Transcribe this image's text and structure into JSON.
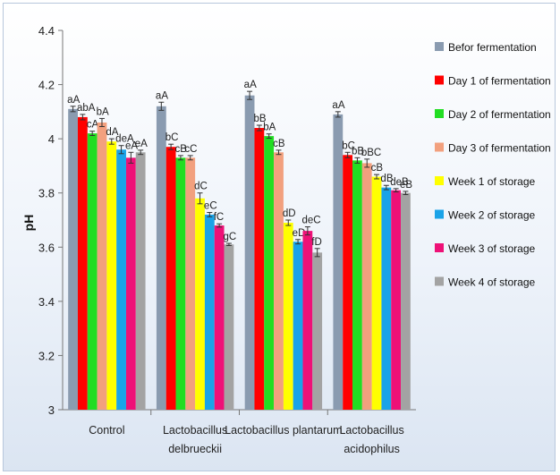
{
  "chart_data": {
    "type": "bar",
    "title": "",
    "xlabel": "",
    "ylabel": "pH",
    "ylim": [
      3,
      4.4
    ],
    "yticks": [
      "3",
      "3.2",
      "3.4",
      "3.6",
      "3.8",
      "4",
      "4.2",
      "4.4"
    ],
    "ytick_values": [
      3,
      3.2,
      3.4,
      3.6,
      3.8,
      4,
      4.2,
      4.4
    ],
    "grid": false,
    "legend_position": "right",
    "categories": [
      [
        "Control"
      ],
      [
        "Lactobacillus",
        "delbrueckii"
      ],
      [
        "Lactobacillus plantarum"
      ],
      [
        "Lactobacillus",
        "acidophilus"
      ]
    ],
    "series": [
      {
        "name": "Befor fermentation",
        "color": "#8a9bb0",
        "values": [
          4.11,
          4.12,
          4.16,
          4.09
        ],
        "errors": [
          0.01,
          0.015,
          0.015,
          0.01
        ],
        "labels": [
          "aA",
          "aA",
          "aA",
          "aA"
        ]
      },
      {
        "name": "Day 1 of fermentation",
        "color": "#ff0000",
        "values": [
          4.08,
          3.97,
          4.04,
          3.94
        ],
        "errors": [
          0.01,
          0.01,
          0.01,
          0.01
        ],
        "labels": [
          "abA",
          "bC",
          "bB",
          "bC"
        ]
      },
      {
        "name": "Day 2 of fermentation",
        "color": "#22dd22",
        "values": [
          4.02,
          3.93,
          4.01,
          3.92
        ],
        "errors": [
          0.008,
          0.008,
          0.008,
          0.01
        ],
        "labels": [
          "cA",
          "cB",
          "bA",
          "bB"
        ]
      },
      {
        "name": "Day 3 of fermentation",
        "color": "#f2a07e",
        "values": [
          4.06,
          3.93,
          3.95,
          3.91
        ],
        "errors": [
          0.015,
          0.008,
          0.008,
          0.015
        ],
        "labels": [
          "bA",
          "cC",
          "cB",
          "bBC"
        ]
      },
      {
        "name": "Week 1 of storage",
        "color": "#ffff00",
        "values": [
          3.99,
          3.78,
          3.69,
          3.86
        ],
        "errors": [
          0.01,
          0.02,
          0.01,
          0.008
        ],
        "labels": [
          "dA",
          "dC",
          "dD",
          "cB"
        ]
      },
      {
        "name": "Week 2 of storage",
        "color": "#1aa3e8",
        "values": [
          3.96,
          3.72,
          3.62,
          3.82
        ],
        "errors": [
          0.015,
          0.008,
          0.008,
          0.008
        ],
        "labels": [
          "deA",
          "eC",
          "eD",
          "dB"
        ]
      },
      {
        "name": "Week 3 of storage",
        "color": "#ee1177",
        "values": [
          3.93,
          3.68,
          3.66,
          3.81
        ],
        "errors": [
          0.02,
          0.006,
          0.015,
          0.006
        ],
        "labels": [
          "eA",
          "fC",
          "deC",
          "deB"
        ]
      },
      {
        "name": "Week 4 of storage",
        "color": "#a3a3a3",
        "values": [
          3.95,
          3.61,
          3.58,
          3.8
        ],
        "errors": [
          0.008,
          0.004,
          0.015,
          0.006
        ],
        "labels": [
          "eA",
          "gC",
          "fD",
          "eB"
        ]
      }
    ]
  }
}
